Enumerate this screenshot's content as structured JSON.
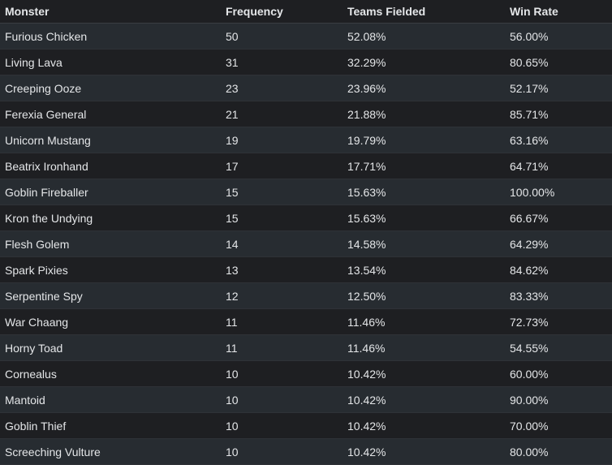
{
  "table": {
    "columns": [
      "Monster",
      "Frequency",
      "Teams Fielded",
      "Win Rate"
    ],
    "rows": [
      [
        "Furious Chicken",
        50,
        "52.08%",
        "56.00%"
      ],
      [
        "Living Lava",
        31,
        "32.29%",
        "80.65%"
      ],
      [
        "Creeping Ooze",
        23,
        "23.96%",
        "52.17%"
      ],
      [
        "Ferexia General",
        21,
        "21.88%",
        "85.71%"
      ],
      [
        "Unicorn Mustang",
        19,
        "19.79%",
        "63.16%"
      ],
      [
        "Beatrix Ironhand",
        17,
        "17.71%",
        "64.71%"
      ],
      [
        "Goblin Fireballer",
        15,
        "15.63%",
        "100.00%"
      ],
      [
        "Kron the Undying",
        15,
        "15.63%",
        "66.67%"
      ],
      [
        "Flesh Golem",
        14,
        "14.58%",
        "64.29%"
      ],
      [
        "Spark Pixies",
        13,
        "13.54%",
        "84.62%"
      ],
      [
        "Serpentine Spy",
        12,
        "12.50%",
        "83.33%"
      ],
      [
        "War Chaang",
        11,
        "11.46%",
        "72.73%"
      ],
      [
        "Horny Toad",
        11,
        "11.46%",
        "54.55%"
      ],
      [
        "Cornealus",
        10,
        "10.42%",
        "60.00%"
      ],
      [
        "Mantoid",
        10,
        "10.42%",
        "90.00%"
      ],
      [
        "Goblin Thief",
        10,
        "10.42%",
        "70.00%"
      ],
      [
        "Screeching Vulture",
        10,
        "10.42%",
        "80.00%"
      ]
    ]
  }
}
